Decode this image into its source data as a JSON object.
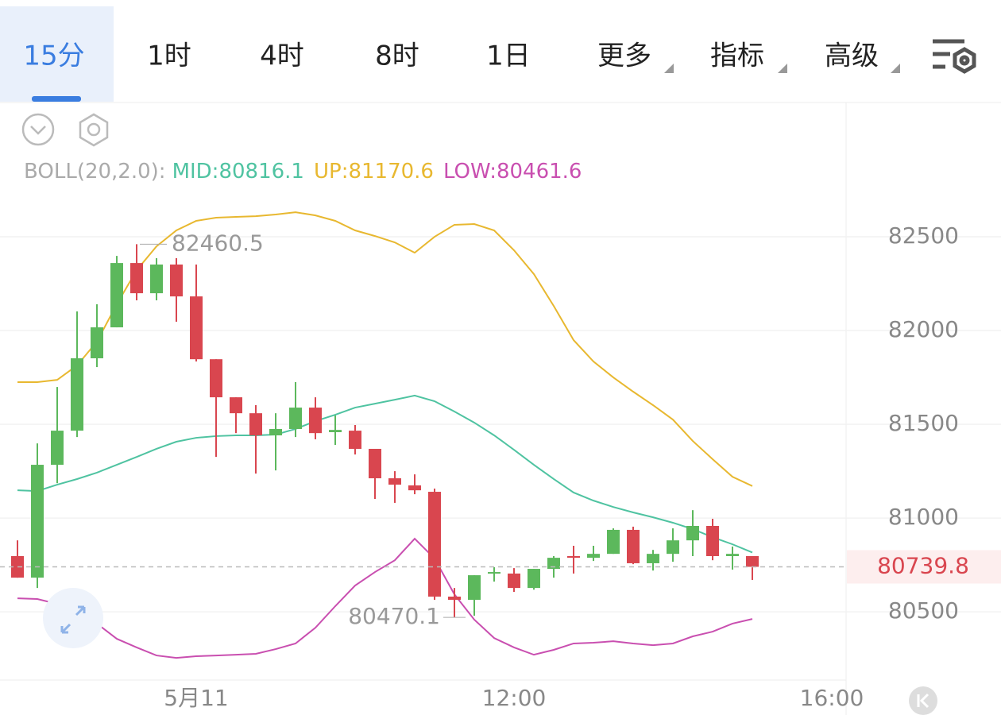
{
  "tabs": {
    "items": [
      "15分",
      "1时",
      "4时",
      "8时",
      "1日",
      "更多",
      "指标",
      "高级"
    ],
    "active": 0
  },
  "chart_data": {
    "type": "candlestick",
    "indicator": "BOLL(20,2.0):",
    "categories": [
      null,
      null,
      null,
      null,
      null,
      null,
      null,
      null,
      null,
      "5月11",
      null,
      null,
      null,
      null,
      null,
      null,
      null,
      null,
      null,
      null,
      null,
      null,
      null,
      null,
      null,
      "12:00",
      null,
      null,
      null,
      null,
      null,
      null,
      null,
      null,
      null,
      null,
      null,
      null,
      null,
      null,
      null,
      "16:00"
    ],
    "open": [
      80797,
      80682,
      81284,
      81466,
      81852,
      82017,
      82360,
      82199,
      82352,
      82182,
      81847,
      81644,
      81559,
      81441,
      81475,
      81589,
      81458,
      81466,
      81369,
      81212,
      81174,
      81140,
      80581,
      80564,
      80704,
      80704,
      80627,
      80729,
      80797,
      80788,
      80809,
      80937,
      80759,
      80809,
      80881,
      80958,
      80797,
      80797,
      null,
      null,
      null,
      null
    ],
    "high": [
      80881,
      81398,
      81699,
      82102,
      82140,
      82398,
      82460.5,
      82386,
      82386,
      82352,
      81847,
      81644,
      81602,
      81559,
      81725,
      81644,
      81547,
      81496,
      81369,
      81250,
      81233,
      81157,
      80627,
      80695,
      80738,
      80733,
      80729,
      80797,
      80852,
      80852,
      80945,
      80954,
      80830,
      80945,
      81042,
      80996,
      80848,
      80797,
      null,
      null,
      null,
      null
    ],
    "low": [
      80682,
      80627,
      81186,
      81432,
      81805,
      82017,
      82161,
      82161,
      82047,
      81835,
      81326,
      81453,
      81237,
      81254,
      81432,
      81420,
      81390,
      81339,
      81102,
      81081,
      81127,
      80564,
      80470.1,
      80479,
      80661,
      80606,
      80618,
      80682,
      80704,
      80771,
      80809,
      80754,
      80720,
      80767,
      80797,
      80775,
      80725,
      80670,
      null,
      null,
      null,
      null
    ],
    "close": [
      80682,
      81284,
      81466,
      81852,
      82017,
      82360,
      82199,
      82352,
      82182,
      81847,
      81644,
      81559,
      81441,
      81475,
      81589,
      81453,
      81470,
      81369,
      81212,
      81178,
      81148,
      80581,
      80564,
      80695,
      80712,
      80627,
      80729,
      80788,
      80788,
      80809,
      80937,
      80759,
      80809,
      80881,
      80958,
      80797,
      80809,
      80739.8,
      null,
      null,
      null,
      null
    ],
    "up_color": "#5cb85c",
    "down_color": "#d9464f",
    "series": [
      {
        "name": "MID:",
        "color": "#4fc3a1",
        "values": [
          81148,
          81144,
          81178,
          81208,
          81242,
          81284,
          81326,
          81369,
          81407,
          81428,
          81437,
          81441,
          81441,
          81445,
          81475,
          81517,
          81551,
          81589,
          81610,
          81631,
          81653,
          81623,
          81568,
          81509,
          81441,
          81364,
          81284,
          81208,
          81136,
          81093,
          81059,
          81030,
          81004,
          80975,
          80941,
          80898,
          80860,
          80816.1,
          null,
          null,
          null,
          null
        ]
      },
      {
        "name": "UP:",
        "color": "#e8b830",
        "values": [
          81725,
          81725,
          81737,
          81814,
          81941,
          82140,
          82322,
          82449,
          82534,
          82585,
          82602,
          82606,
          82610,
          82619,
          82631,
          82614,
          82585,
          82534,
          82504,
          82470,
          82415,
          82500,
          82564,
          82568,
          82534,
          82428,
          82301,
          82131,
          81949,
          81835,
          81750,
          81674,
          81602,
          81525,
          81411,
          81314,
          81220,
          81170.6,
          null,
          null,
          null,
          null
        ]
      },
      {
        "name": "LOW:",
        "color": "#c94fb0",
        "values": [
          80572,
          80568,
          80542,
          80479,
          80437,
          80356,
          80310,
          80267,
          80254,
          80263,
          80267,
          80271,
          80276,
          80301,
          80331,
          80415,
          80530,
          80640,
          80712,
          80775,
          80890,
          80784,
          80593,
          80458,
          80360,
          80310,
          80271,
          80297,
          80331,
          80335,
          80343,
          80331,
          80322,
          80331,
          80369,
          80394,
          80437,
          80461.6,
          null,
          null,
          null,
          null
        ]
      }
    ],
    "ylim": [
      80136,
      83212
    ],
    "yticks": [
      82500,
      82000,
      81500,
      81000,
      80500
    ],
    "grid": true
  }
}
